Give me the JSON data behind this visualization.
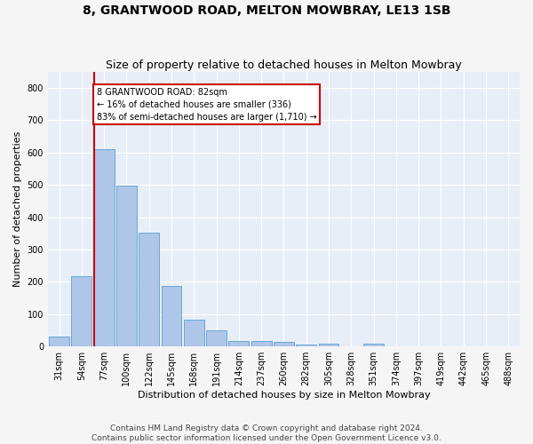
{
  "title1": "8, GRANTWOOD ROAD, MELTON MOWBRAY, LE13 1SB",
  "title2": "Size of property relative to detached houses in Melton Mowbray",
  "xlabel": "Distribution of detached houses by size in Melton Mowbray",
  "ylabel": "Number of detached properties",
  "bin_labels": [
    "31sqm",
    "54sqm",
    "77sqm",
    "100sqm",
    "122sqm",
    "145sqm",
    "168sqm",
    "191sqm",
    "214sqm",
    "237sqm",
    "260sqm",
    "282sqm",
    "305sqm",
    "328sqm",
    "351sqm",
    "374sqm",
    "397sqm",
    "419sqm",
    "442sqm",
    "465sqm",
    "488sqm"
  ],
  "bar_heights": [
    30,
    218,
    610,
    497,
    353,
    188,
    83,
    50,
    18,
    18,
    14,
    6,
    10,
    0,
    8,
    0,
    0,
    0,
    0,
    0,
    0
  ],
  "bar_color": "#aec6e8",
  "bar_edge_color": "#5a9fd4",
  "annotation_line1": "8 GRANTWOOD ROAD: 82sqm",
  "annotation_line2": "← 16% of detached houses are smaller (336)",
  "annotation_line3": "83% of semi-detached houses are larger (1,710) →",
  "red_color": "#cc0000",
  "annotation_box_color": "#ffffff",
  "annotation_box_edge": "#cc0000",
  "footer1": "Contains HM Land Registry data © Crown copyright and database right 2024.",
  "footer2": "Contains public sector information licensed under the Open Government Licence v3.0.",
  "ylim": [
    0,
    850
  ],
  "yticks": [
    0,
    100,
    200,
    300,
    400,
    500,
    600,
    700,
    800
  ],
  "background_color": "#e8eef7",
  "grid_color": "#ffffff",
  "fig_facecolor": "#f5f5f5",
  "title_fontsize": 10,
  "subtitle_fontsize": 9,
  "axis_label_fontsize": 8,
  "tick_fontsize": 7,
  "footer_fontsize": 6.5,
  "annot_fontsize": 7,
  "red_line_bin_index": 2
}
